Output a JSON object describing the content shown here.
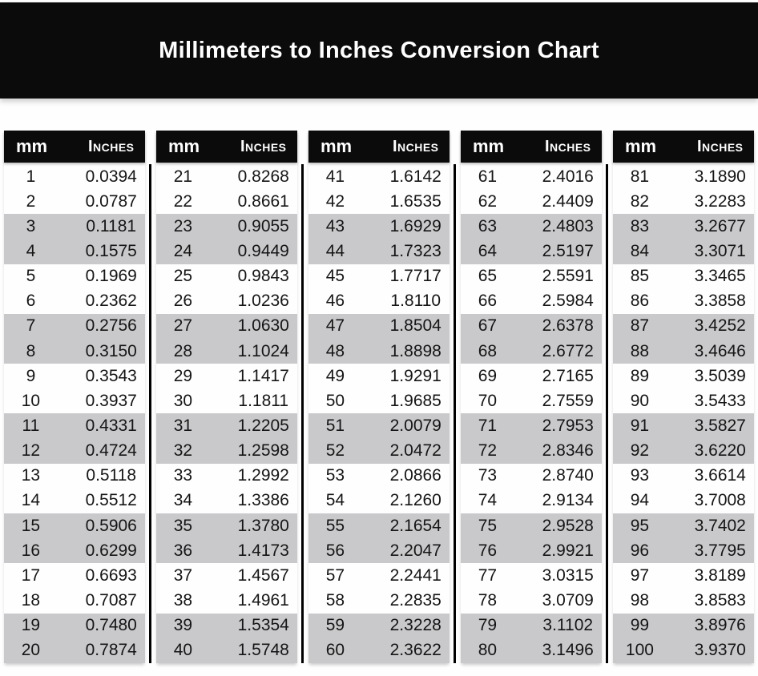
{
  "page_title": "Millimeters to Inches Conversion Chart",
  "table": {
    "column_headers": {
      "mm": "mm",
      "inches": "Inches"
    }
  },
  "colors": {
    "header_bg": "#0b0b0b",
    "stripe_gray": "#c9c9cb",
    "text": "#151515",
    "header_text": "#ffffff",
    "background": "#fefefe"
  },
  "chart_data": {
    "type": "table",
    "title": "Millimeters to Inches Conversion Chart",
    "column_headers": [
      "mm",
      "Inches"
    ],
    "stripe_pattern": "two white rows followed by two gray rows, repeating",
    "groups": [
      {
        "rows": [
          [
            "1",
            "0.0394"
          ],
          [
            "2",
            "0.0787"
          ],
          [
            "3",
            "0.1181"
          ],
          [
            "4",
            "0.1575"
          ],
          [
            "5",
            "0.1969"
          ],
          [
            "6",
            "0.2362"
          ],
          [
            "7",
            "0.2756"
          ],
          [
            "8",
            "0.3150"
          ],
          [
            "9",
            "0.3543"
          ],
          [
            "10",
            "0.3937"
          ],
          [
            "11",
            "0.4331"
          ],
          [
            "12",
            "0.4724"
          ],
          [
            "13",
            "0.5118"
          ],
          [
            "14",
            "0.5512"
          ],
          [
            "15",
            "0.5906"
          ],
          [
            "16",
            "0.6299"
          ],
          [
            "17",
            "0.6693"
          ],
          [
            "18",
            "0.7087"
          ],
          [
            "19",
            "0.7480"
          ],
          [
            "20",
            "0.7874"
          ]
        ]
      },
      {
        "rows": [
          [
            "21",
            "0.8268"
          ],
          [
            "22",
            "0.8661"
          ],
          [
            "23",
            "0.9055"
          ],
          [
            "24",
            "0.9449"
          ],
          [
            "25",
            "0.9843"
          ],
          [
            "26",
            "1.0236"
          ],
          [
            "27",
            "1.0630"
          ],
          [
            "28",
            "1.1024"
          ],
          [
            "29",
            "1.1417"
          ],
          [
            "30",
            "1.1811"
          ],
          [
            "31",
            "1.2205"
          ],
          [
            "32",
            "1.2598"
          ],
          [
            "33",
            "1.2992"
          ],
          [
            "34",
            "1.3386"
          ],
          [
            "35",
            "1.3780"
          ],
          [
            "36",
            "1.4173"
          ],
          [
            "37",
            "1.4567"
          ],
          [
            "38",
            "1.4961"
          ],
          [
            "39",
            "1.5354"
          ],
          [
            "40",
            "1.5748"
          ]
        ]
      },
      {
        "rows": [
          [
            "41",
            "1.6142"
          ],
          [
            "42",
            "1.6535"
          ],
          [
            "43",
            "1.6929"
          ],
          [
            "44",
            "1.7323"
          ],
          [
            "45",
            "1.7717"
          ],
          [
            "46",
            "1.8110"
          ],
          [
            "47",
            "1.8504"
          ],
          [
            "48",
            "1.8898"
          ],
          [
            "49",
            "1.9291"
          ],
          [
            "50",
            "1.9685"
          ],
          [
            "51",
            "2.0079"
          ],
          [
            "52",
            "2.0472"
          ],
          [
            "53",
            "2.0866"
          ],
          [
            "54",
            "2.1260"
          ],
          [
            "55",
            "2.1654"
          ],
          [
            "56",
            "2.2047"
          ],
          [
            "57",
            "2.2441"
          ],
          [
            "58",
            "2.2835"
          ],
          [
            "59",
            "2.3228"
          ],
          [
            "60",
            "2.3622"
          ]
        ]
      },
      {
        "rows": [
          [
            "61",
            "2.4016"
          ],
          [
            "62",
            "2.4409"
          ],
          [
            "63",
            "2.4803"
          ],
          [
            "64",
            "2.5197"
          ],
          [
            "65",
            "2.5591"
          ],
          [
            "66",
            "2.5984"
          ],
          [
            "67",
            "2.6378"
          ],
          [
            "68",
            "2.6772"
          ],
          [
            "69",
            "2.7165"
          ],
          [
            "70",
            "2.7559"
          ],
          [
            "71",
            "2.7953"
          ],
          [
            "72",
            "2.8346"
          ],
          [
            "73",
            "2.8740"
          ],
          [
            "74",
            "2.9134"
          ],
          [
            "75",
            "2.9528"
          ],
          [
            "76",
            "2.9921"
          ],
          [
            "77",
            "3.0315"
          ],
          [
            "78",
            "3.0709"
          ],
          [
            "79",
            "3.1102"
          ],
          [
            "80",
            "3.1496"
          ]
        ]
      },
      {
        "rows": [
          [
            "81",
            "3.1890"
          ],
          [
            "82",
            "3.2283"
          ],
          [
            "83",
            "3.2677"
          ],
          [
            "84",
            "3.3071"
          ],
          [
            "85",
            "3.3465"
          ],
          [
            "86",
            "3.3858"
          ],
          [
            "87",
            "3.4252"
          ],
          [
            "88",
            "3.4646"
          ],
          [
            "89",
            "3.5039"
          ],
          [
            "90",
            "3.5433"
          ],
          [
            "91",
            "3.5827"
          ],
          [
            "92",
            "3.6220"
          ],
          [
            "93",
            "3.6614"
          ],
          [
            "94",
            "3.7008"
          ],
          [
            "95",
            "3.7402"
          ],
          [
            "96",
            "3.7795"
          ],
          [
            "97",
            "3.8189"
          ],
          [
            "98",
            "3.8583"
          ],
          [
            "99",
            "3.8976"
          ],
          [
            "100",
            "3.9370"
          ]
        ]
      }
    ]
  }
}
